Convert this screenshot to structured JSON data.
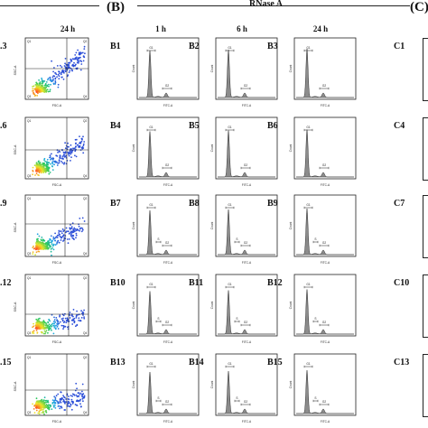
{
  "panel_a": {
    "column_header": "24 h",
    "panel_labels": [
      ".3",
      ".6",
      ".9",
      ".12",
      ".15"
    ],
    "gate_labels": {
      "q1": "Q1",
      "q2": "Q2",
      "q3": "Q3",
      "q4": "Q4"
    },
    "x_axis_label": "FSC-A",
    "y_axis_label": "SSC-A"
  },
  "panel_b": {
    "letter": "(B)",
    "group_title": "RNase A",
    "column_headers": [
      "1 h",
      "6 h",
      "24 h"
    ],
    "panel_labels": [
      "B1",
      "B2",
      "B3",
      "B4",
      "B5",
      "B6",
      "B7",
      "B8",
      "B9",
      "B10",
      "B11",
      "B12",
      "B13",
      "B14",
      "B15"
    ],
    "peak_labels": {
      "g1": "G1",
      "g2": "G2",
      "s": "S"
    },
    "x_axis_label": "FITC-A",
    "y_axis_label": "Count"
  },
  "panel_c": {
    "letter": "(C)",
    "panel_labels": [
      "C1",
      "C4",
      "C7",
      "C10",
      "C13"
    ]
  },
  "colors": {
    "ink": "#222222",
    "histogram_fill": "#8c8c8c",
    "density_low": "#2c4fd8",
    "density_high": "#ff3b1f"
  }
}
